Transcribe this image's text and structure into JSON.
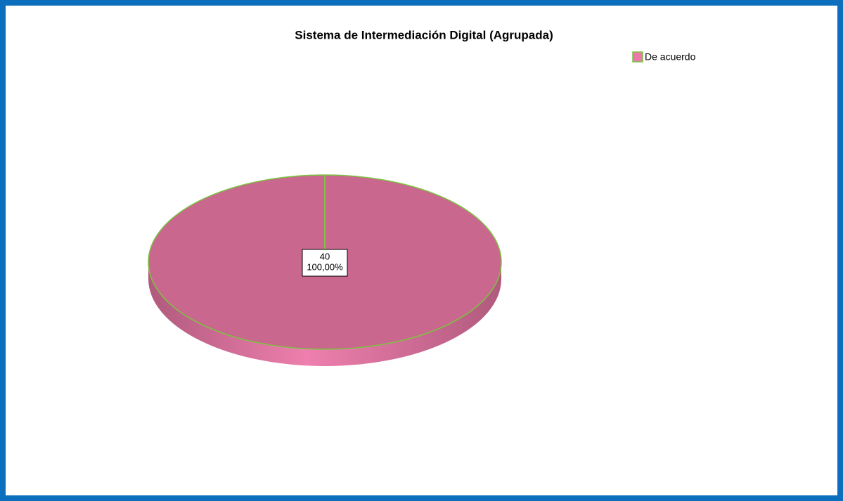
{
  "chart_data": {
    "type": "pie",
    "title": "Sistema de Intermediación Digital (Agrupada)",
    "categories": [
      "De acuerdo"
    ],
    "values": [
      40
    ],
    "percent_labels": [
      "100,00%"
    ],
    "colors": [
      "#c9678e"
    ],
    "edge_color": "#7dc242",
    "legend": "top-right"
  }
}
